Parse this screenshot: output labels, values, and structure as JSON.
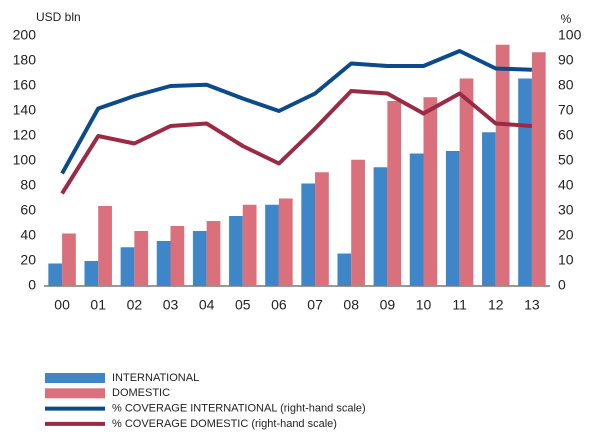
{
  "chart_data": {
    "type": "bar",
    "y_label": "USD bln",
    "y2_label": "%",
    "categories": [
      "00",
      "01",
      "02",
      "03",
      "04",
      "05",
      "06",
      "07",
      "08",
      "09",
      "10",
      "11",
      "12",
      "13"
    ],
    "series": [
      {
        "name": "INTERNATIONAL",
        "type": "bar",
        "color": "#3f86c9",
        "values": [
          18,
          20,
          31,
          36,
          44,
          56,
          65,
          82,
          26,
          95,
          106,
          108,
          123,
          166
        ]
      },
      {
        "name": "DOMESTIC",
        "type": "bar",
        "color": "#d9707b",
        "values": [
          42,
          64,
          44,
          48,
          52,
          65,
          70,
          91,
          101,
          148,
          151,
          166,
          193,
          187
        ]
      },
      {
        "name": "% COVERAGE INTERNATIONAL (right-hand scale)",
        "type": "line",
        "axis": "y2",
        "color": "#0d4a8a",
        "values": [
          45,
          71,
          76,
          80,
          80.5,
          75,
          70,
          77,
          89,
          88,
          88,
          94,
          87,
          86.5
        ]
      },
      {
        "name": "% COVERAGE DOMESTIC (right-hand scale)",
        "type": "line",
        "axis": "y2",
        "color": "#9a2a45",
        "values": [
          37,
          60,
          57,
          64,
          65,
          56,
          49,
          63,
          78,
          77,
          69,
          77,
          65,
          64
        ]
      }
    ],
    "ylim": [
      0,
      200
    ],
    "yticks": [
      0,
      20,
      40,
      60,
      80,
      100,
      120,
      140,
      160,
      180,
      200
    ],
    "y2lim": [
      0,
      100
    ],
    "y2ticks": [
      0,
      10,
      20,
      30,
      40,
      50,
      60,
      70,
      80,
      90,
      100
    ],
    "grid": false
  }
}
